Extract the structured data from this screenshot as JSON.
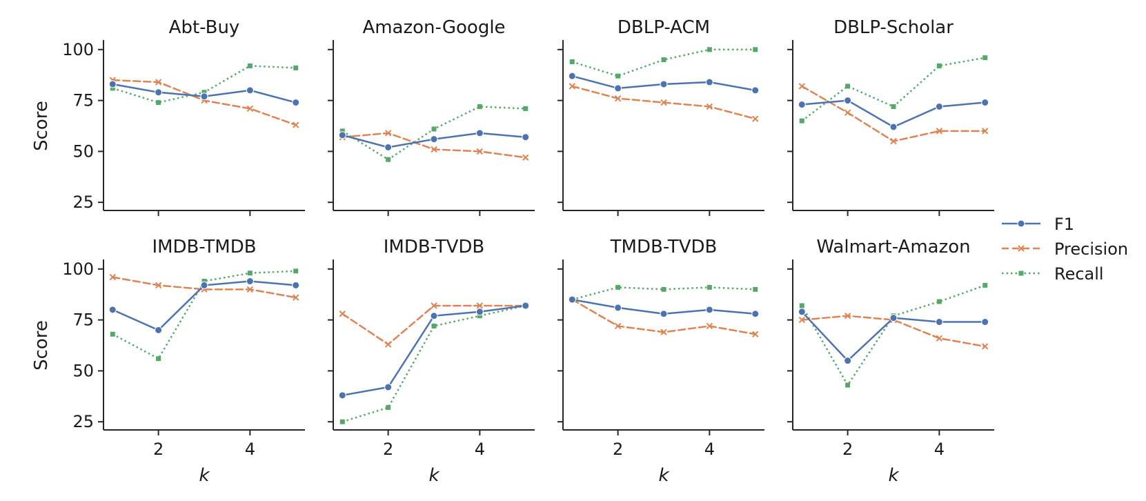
{
  "chart_data": {
    "type": "line",
    "x": [
      1,
      2,
      3,
      4,
      5
    ],
    "xlabel": "k",
    "ylabel": "Score",
    "xlim": [
      0.8,
      5.2
    ],
    "ylim": [
      21,
      104
    ],
    "xticks": [
      2,
      4
    ],
    "yticks": [
      25,
      50,
      75,
      100
    ],
    "legend_position": "right",
    "series_styles": [
      {
        "name": "F1",
        "color": "#4C72B0",
        "dash": "solid",
        "marker": "circle"
      },
      {
        "name": "Precision",
        "color": "#DD8452",
        "dash": "dashed",
        "marker": "x"
      },
      {
        "name": "Recall",
        "color": "#55A868",
        "dash": "dotted",
        "marker": "square"
      }
    ],
    "panels": [
      {
        "title": "Abt-Buy",
        "series": [
          {
            "name": "F1",
            "values": [
              83,
              79,
              77,
              80,
              74
            ]
          },
          {
            "name": "Precision",
            "values": [
              85,
              84,
              75,
              71,
              63
            ]
          },
          {
            "name": "Recall",
            "values": [
              81,
              74,
              79,
              92,
              91
            ]
          }
        ]
      },
      {
        "title": "Amazon-Google",
        "series": [
          {
            "name": "F1",
            "values": [
              58,
              52,
              56,
              59,
              57
            ]
          },
          {
            "name": "Precision",
            "values": [
              57,
              59,
              51,
              50,
              47
            ]
          },
          {
            "name": "Recall",
            "values": [
              60,
              46,
              61,
              72,
              71
            ]
          }
        ]
      },
      {
        "title": "DBLP-ACM",
        "series": [
          {
            "name": "F1",
            "values": [
              87,
              81,
              83,
              84,
              80
            ]
          },
          {
            "name": "Precision",
            "values": [
              82,
              76,
              74,
              72,
              66
            ]
          },
          {
            "name": "Recall",
            "values": [
              94,
              87,
              95,
              100,
              100
            ]
          }
        ]
      },
      {
        "title": "DBLP-Scholar",
        "series": [
          {
            "name": "F1",
            "values": [
              73,
              75,
              62,
              72,
              74
            ]
          },
          {
            "name": "Precision",
            "values": [
              82,
              69,
              55,
              60,
              60
            ]
          },
          {
            "name": "Recall",
            "values": [
              65,
              82,
              72,
              92,
              96
            ]
          }
        ]
      },
      {
        "title": "IMDB-TMDB",
        "series": [
          {
            "name": "F1",
            "values": [
              80,
              70,
              92,
              94,
              92
            ]
          },
          {
            "name": "Precision",
            "values": [
              96,
              92,
              90,
              90,
              86
            ]
          },
          {
            "name": "Recall",
            "values": [
              68,
              56,
              94,
              98,
              99
            ]
          }
        ]
      },
      {
        "title": "IMDB-TVDB",
        "series": [
          {
            "name": "F1",
            "values": [
              38,
              42,
              77,
              79,
              82
            ]
          },
          {
            "name": "Precision",
            "values": [
              78,
              63,
              82,
              82,
              82
            ]
          },
          {
            "name": "Recall",
            "values": [
              25,
              32,
              72,
              77,
              82
            ]
          }
        ]
      },
      {
        "title": "TMDB-TVDB",
        "series": [
          {
            "name": "F1",
            "values": [
              85,
              81,
              78,
              80,
              78
            ]
          },
          {
            "name": "Precision",
            "values": [
              85,
              72,
              69,
              72,
              68
            ]
          },
          {
            "name": "Recall",
            "values": [
              85,
              91,
              90,
              91,
              90
            ]
          }
        ]
      },
      {
        "title": "Walmart-Amazon",
        "series": [
          {
            "name": "F1",
            "values": [
              79,
              55,
              76,
              74,
              74
            ]
          },
          {
            "name": "Precision",
            "values": [
              75,
              77,
              75,
              66,
              62
            ]
          },
          {
            "name": "Recall",
            "values": [
              82,
              43,
              77,
              84,
              92
            ]
          }
        ]
      }
    ]
  }
}
